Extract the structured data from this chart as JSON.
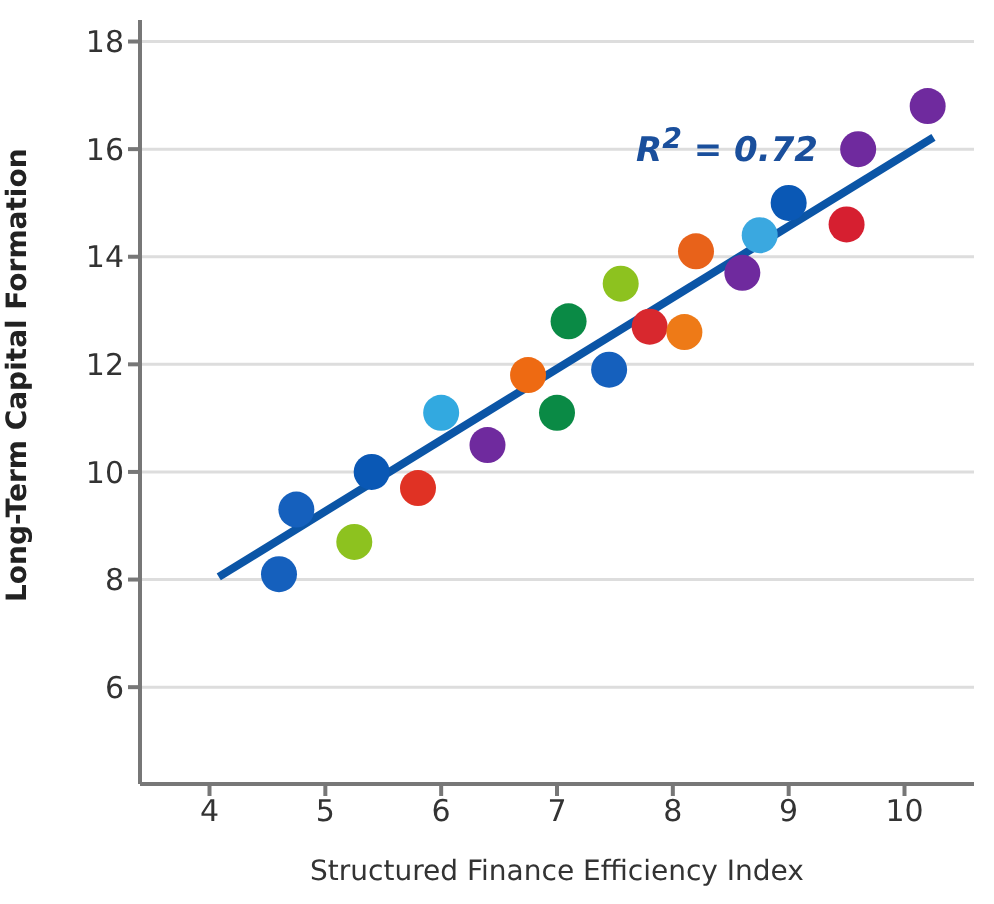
{
  "chart_data": {
    "type": "scatter",
    "xlabel": "Structured Finance Efficiency Index",
    "ylabel": "Long-Term Capital Formation",
    "xlim": [
      3.4,
      10.6
    ],
    "ylim": [
      4.2,
      18.4
    ],
    "xticks": [
      4,
      5,
      6,
      7,
      8,
      9,
      10
    ],
    "yticks": [
      6,
      8,
      10,
      12,
      14,
      16,
      18
    ],
    "grid": "y",
    "annotations": [
      "R$^{2}$ = 0.72"
    ],
    "series": [
      {
        "marker": "circle",
        "x": [
          4.6,
          4.75,
          5.25,
          5.4,
          5.8,
          6.0,
          6.4,
          6.75,
          7.0,
          7.1,
          7.45,
          7.55,
          7.8,
          8.1,
          8.2,
          8.6,
          8.75,
          9.0,
          9.5,
          9.6,
          10.2
        ],
        "values": [
          8.1,
          9.3,
          8.7,
          10.0,
          9.7,
          11.1,
          10.5,
          11.8,
          11.1,
          12.8,
          11.9,
          13.5,
          12.7,
          12.6,
          14.1,
          13.7,
          14.4,
          15.0,
          14.6,
          16.0,
          16.8
        ],
        "colors": [
          "#1560bd",
          "#1560bd",
          "#8dc21f",
          "#0a58b5",
          "#e03224",
          "#32a9e0",
          "#6f2a9e",
          "#ee6a12",
          "#0a8a45",
          "#0a8a45",
          "#1560bd",
          "#8dc21f",
          "#d8282e",
          "#ee7a17",
          "#e8621a",
          "#6f2a9e",
          "#3aa8e0",
          "#0a58b5",
          "#d61f30",
          "#6f2a9e",
          "#6f2a9e"
        ]
      },
      {
        "type": "line",
        "color": "#0b55a6",
        "x": [
          4.08,
          10.25
        ],
        "values": [
          8.05,
          16.22
        ]
      }
    ]
  }
}
